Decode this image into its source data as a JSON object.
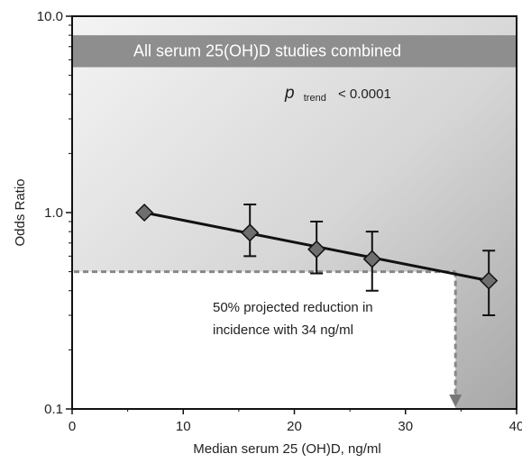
{
  "chart_data": {
    "type": "line",
    "xlabel": "Median serum 25 (OH)D, ng/ml",
    "ylabel": "Odds Ratio",
    "xlim": [
      0,
      40
    ],
    "ylim": [
      0.1,
      10.0
    ],
    "yscale": "log",
    "x_ticks": [
      0,
      10,
      20,
      30,
      40
    ],
    "x_tick_labels": [
      "0",
      "10",
      "20",
      "30",
      "40"
    ],
    "y_ticks": [
      0.1,
      1.0,
      10.0
    ],
    "y_tick_labels": [
      "0.1",
      "1.0",
      "10.0"
    ],
    "series": [
      {
        "points": [
          {
            "x": 6.5,
            "y": 1.0,
            "lower": 1.0,
            "upper": 1.0
          },
          {
            "x": 16,
            "y": 0.79,
            "lower": 0.6,
            "upper": 1.1
          },
          {
            "x": 22,
            "y": 0.65,
            "lower": 0.49,
            "upper": 0.9
          },
          {
            "x": 27,
            "y": 0.58,
            "lower": 0.4,
            "upper": 0.8
          },
          {
            "x": 37.5,
            "y": 0.45,
            "lower": 0.3,
            "upper": 0.64
          }
        ]
      }
    ],
    "trend_line": {
      "x": [
        6.5,
        37.5
      ],
      "y": [
        1.0,
        0.45
      ]
    },
    "reference_line": {
      "y": 0.5,
      "x_start": 0,
      "x_end": 34.5
    },
    "projection_arrow": {
      "x": 34.5,
      "y_from": 0.5,
      "y_to": 0.1
    },
    "banner": {
      "text": "All serum 25(OH)D studies combined",
      "y_low": 5.5,
      "y_high": 8.0
    },
    "annotations": {
      "p_symbol": "p",
      "p_subscript": "trend",
      "p_value": "< 0.0001",
      "projection_line1": "50% projected reduction in",
      "projection_line2": "incidence with 34 ng/ml"
    },
    "colors": {
      "gradient_light": "#f4f4f4",
      "gradient_dark": "#a8a8a8",
      "banner": "#8e8e8e",
      "marker": "#6e6e6e",
      "line": "#111111",
      "dashed": "#888888"
    }
  }
}
